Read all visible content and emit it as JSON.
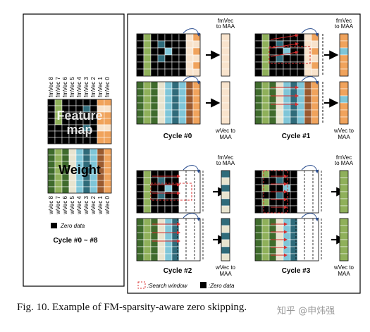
{
  "left_panel": {
    "fm_labels": [
      "fmVec 8",
      "fmVec 7",
      "fmVec 6",
      "fmVec 5",
      "fmVec 4",
      "fmVec 3",
      "fmVec 2",
      "fmVec 1",
      "fmVec 0"
    ],
    "w_labels": [
      "wVec 8",
      "wVec 7",
      "wVec 6",
      "wVec 5",
      "wVec 4",
      "wVec 3",
      "wVec 2",
      "wVec 1",
      "wVec 0"
    ],
    "feature_map_text": "Feature map",
    "weight_text": "Weight",
    "zero_legend": "Zero data",
    "cycle_range": "Cycle #0 ~ #8"
  },
  "right_panel": {
    "fm_out_label": "fmVec to MAA",
    "w_out_label": "wVec to MAA",
    "cycles": [
      "Cycle #0",
      "Cycle #1",
      "Cycle #2",
      "Cycle #3"
    ],
    "legend_search": ":Search window",
    "legend_zero": ":Zero data"
  },
  "colors": {
    "green": "#8fb05a",
    "darkgreen": "#3f6b2c",
    "beige": "#e8e4cf",
    "teal": "#2f6b7a",
    "lightblue": "#7fc6d8",
    "brown": "#9a5a2f",
    "orange": "#f0a35c",
    "peach": "#f8e3cc",
    "black": "#000000",
    "red": "#d93030"
  },
  "caption": "Fig. 10.   Example of FM-sparsity-aware zero skipping.",
  "watermark": "知乎 @申炜强"
}
